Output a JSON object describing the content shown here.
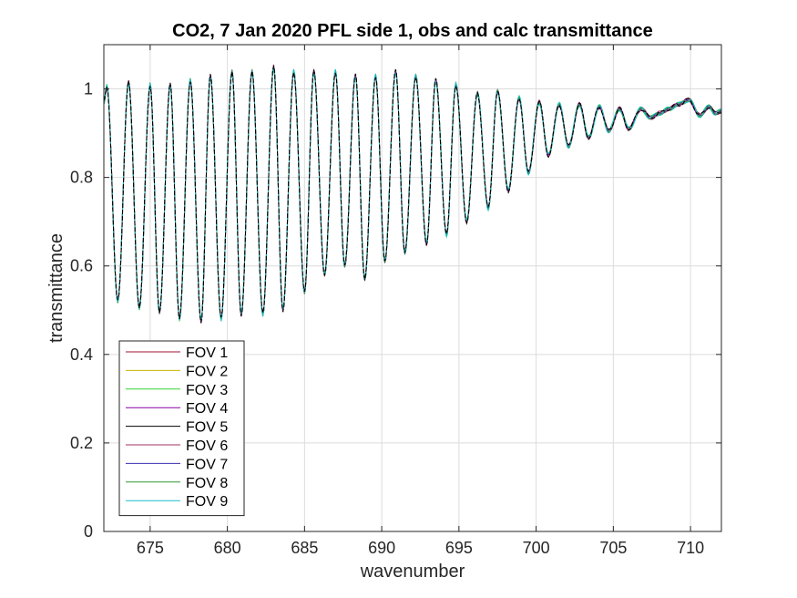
{
  "chart_data": {
    "type": "line",
    "title": "CO2, 7 Jan 2020 PFL side 1, obs and calc transmittance",
    "xlabel": "wavenumber",
    "ylabel": "transmittance",
    "xlim": [
      672,
      712
    ],
    "ylim": [
      0,
      1.1
    ],
    "xticks": [
      675,
      680,
      685,
      690,
      695,
      700,
      705,
      710
    ],
    "yticks": [
      0,
      0.2,
      0.4,
      0.6,
      0.8,
      1
    ],
    "ytick_labels": [
      "0",
      "0.2",
      "0.4",
      "0.6",
      "0.8",
      "1"
    ],
    "grid": true,
    "legend_position": "bottom-left",
    "extrema": [
      [
        672.0,
        0.97
      ],
      [
        672.2,
        1.005
      ],
      [
        672.9,
        0.52
      ],
      [
        673.6,
        1.015
      ],
      [
        674.3,
        0.505
      ],
      [
        675.0,
        1.01
      ],
      [
        675.6,
        0.495
      ],
      [
        676.3,
        1.01
      ],
      [
        676.9,
        0.48
      ],
      [
        677.6,
        1.02
      ],
      [
        678.3,
        0.475
      ],
      [
        678.9,
        1.03
      ],
      [
        679.6,
        0.48
      ],
      [
        680.3,
        1.04
      ],
      [
        680.9,
        0.49
      ],
      [
        681.6,
        1.04
      ],
      [
        682.3,
        0.49
      ],
      [
        683.0,
        1.05
      ],
      [
        683.6,
        0.5
      ],
      [
        684.3,
        1.04
      ],
      [
        685.0,
        0.54
      ],
      [
        685.6,
        1.04
      ],
      [
        686.3,
        0.58
      ],
      [
        687.0,
        1.04
      ],
      [
        687.6,
        0.6
      ],
      [
        688.3,
        1.03
      ],
      [
        688.9,
        0.57
      ],
      [
        689.6,
        1.03
      ],
      [
        690.2,
        0.61
      ],
      [
        690.9,
        1.04
      ],
      [
        691.5,
        0.63
      ],
      [
        692.2,
        1.03
      ],
      [
        692.9,
        0.65
      ],
      [
        693.5,
        1.02
      ],
      [
        694.2,
        0.67
      ],
      [
        694.8,
        1.01
      ],
      [
        695.5,
        0.7
      ],
      [
        696.2,
        0.99
      ],
      [
        696.9,
        0.73
      ],
      [
        697.5,
        0.995
      ],
      [
        698.2,
        0.77
      ],
      [
        698.9,
        0.98
      ],
      [
        699.5,
        0.81
      ],
      [
        700.2,
        0.97
      ],
      [
        700.8,
        0.85
      ],
      [
        701.5,
        0.965
      ],
      [
        702.1,
        0.87
      ],
      [
        702.8,
        0.965
      ],
      [
        703.4,
        0.89
      ],
      [
        704.1,
        0.96
      ],
      [
        704.7,
        0.905
      ],
      [
        705.4,
        0.955
      ],
      [
        706.0,
        0.91
      ],
      [
        706.8,
        0.955
      ],
      [
        707.4,
        0.935
      ],
      [
        708.0,
        0.945
      ],
      [
        708.6,
        0.955
      ],
      [
        709.2,
        0.965
      ],
      [
        709.9,
        0.975
      ],
      [
        710.6,
        0.94
      ],
      [
        711.2,
        0.96
      ],
      [
        711.6,
        0.945
      ],
      [
        712.0,
        0.95
      ]
    ],
    "series": [
      {
        "name": "FOV 1",
        "color": "#A2142F"
      },
      {
        "name": "FOV 2",
        "color": "#C8B400"
      },
      {
        "name": "FOV 3",
        "color": "#33D633"
      },
      {
        "name": "FOV 4",
        "color": "#8800A8"
      },
      {
        "name": "FOV 5",
        "color": "#000000"
      },
      {
        "name": "FOV 6",
        "color": "#A83262"
      },
      {
        "name": "FOV 7",
        "color": "#3A2FB0"
      },
      {
        "name": "FOV 8",
        "color": "#2E9A2E"
      },
      {
        "name": "FOV 9",
        "color": "#17BECF"
      }
    ]
  }
}
